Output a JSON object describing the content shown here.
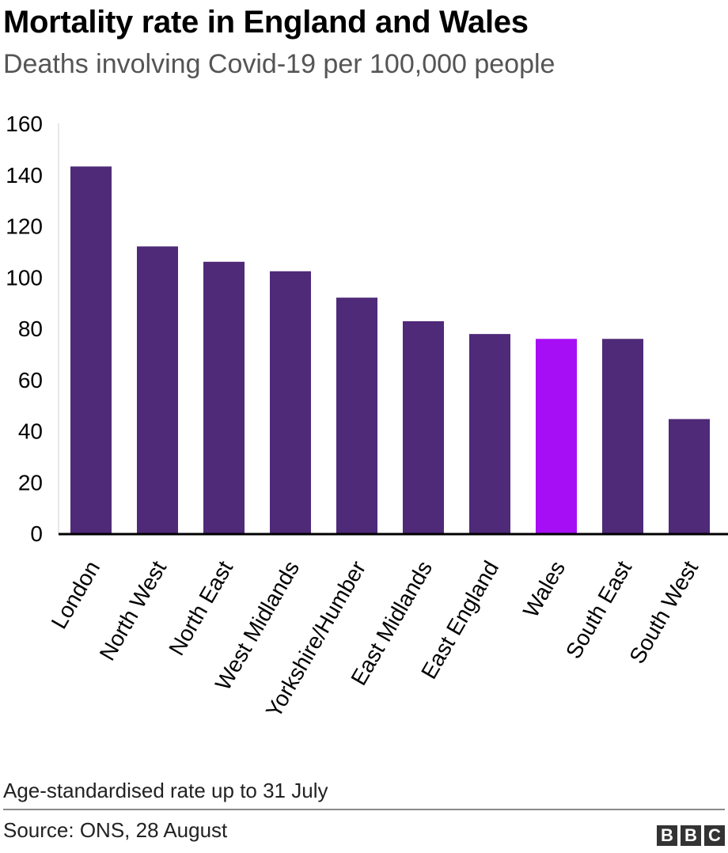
{
  "chart_data": {
    "type": "bar",
    "title": "Mortality rate in England and Wales",
    "subtitle": "Deaths involving Covid-19 per 100,000 people",
    "categories": [
      "London",
      "North West",
      "North East",
      "West Midlands",
      "Yorkshire/Humber",
      "East Midlands",
      "East England",
      "Wales",
      "South East",
      "South West"
    ],
    "values": [
      143.2,
      112.0,
      106.0,
      102.3,
      92.0,
      82.8,
      77.8,
      75.9,
      75.9,
      44.6
    ],
    "highlight_index": 7,
    "ylim": [
      0,
      160
    ],
    "yticks": [
      0,
      20,
      40,
      60,
      80,
      100,
      120,
      140,
      160
    ],
    "xlabel": "",
    "ylabel": "",
    "grid": false,
    "colors": {
      "bar": "#4e2a78",
      "highlight": "#a60ff5",
      "axis": "#000000"
    }
  },
  "footer": {
    "note": "Age-standardised rate up to 31 July",
    "source": "Source: ONS, 28 August",
    "logo": [
      "B",
      "B",
      "C"
    ]
  }
}
